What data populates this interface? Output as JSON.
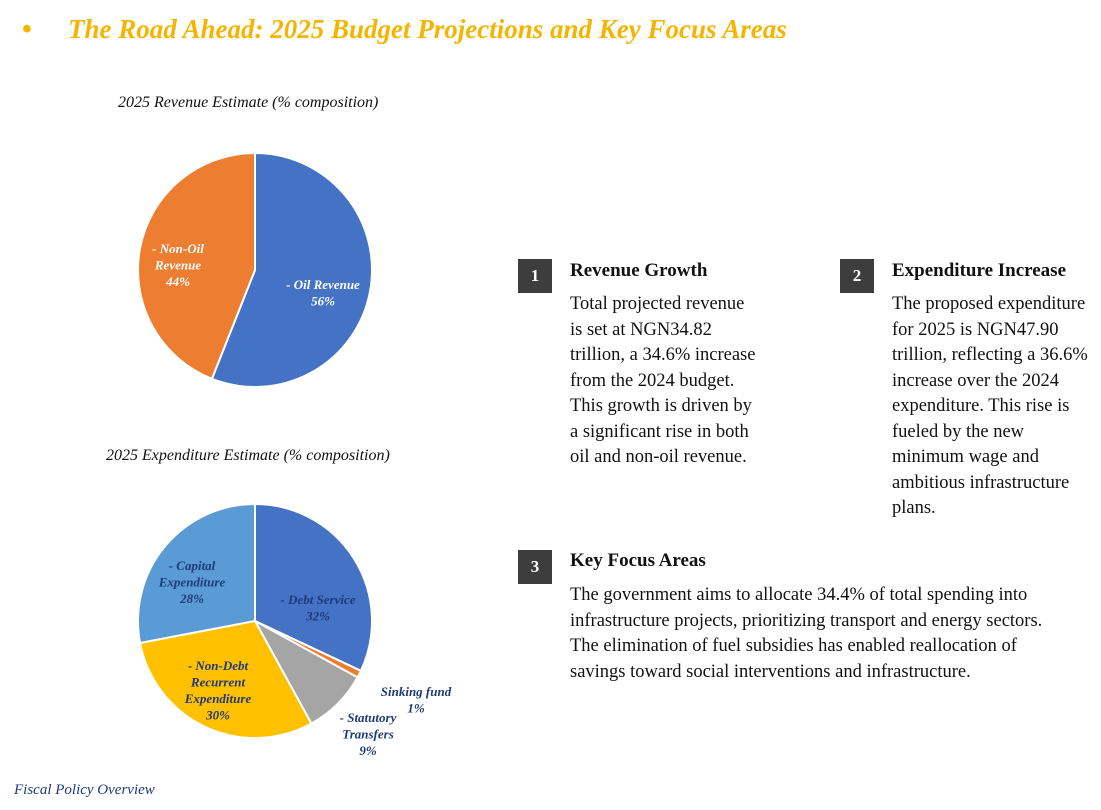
{
  "header": {
    "bullet": "•",
    "title": "The Road Ahead: 2025 Budget Projections and Key Focus Areas"
  },
  "colors": {
    "accent": "#F5B400",
    "oil": "#4472C4",
    "non_oil": "#ED7D31",
    "debt_service": "#4472C4",
    "sinking_fund": "#ED7D31",
    "statutory_transfers": "#A5A5A5",
    "non_debt_recurrent": "#FFC000",
    "capital_expenditure": "#5B9BD5",
    "label_dark": "#1F3A7A",
    "badge_bg": "#3D3D3D"
  },
  "chart_data": [
    {
      "type": "pie",
      "title": "2025 Revenue Estimate (% composition)",
      "slices": [
        {
          "name": "Oil Revenue",
          "value": 56,
          "label_lines": [
            "- Oil Revenue",
            "56%"
          ],
          "color": "#4472C4",
          "label_color": "#ffffff"
        },
        {
          "name": "Non-Oil Revenue",
          "value": 44,
          "label_lines": [
            "- Non-Oil",
            "Revenue",
            "44%"
          ],
          "color": "#ED7D31",
          "label_color": "#ffffff"
        }
      ]
    },
    {
      "type": "pie",
      "title": "2025 Expenditure Estimate (% composition)",
      "slices": [
        {
          "name": "Debt Service",
          "value": 32,
          "label_lines": [
            "- Debt Service",
            "32%"
          ],
          "color": "#4472C4",
          "label_color": "#1F3A7A"
        },
        {
          "name": "Sinking fund",
          "value": 1,
          "label_lines": [
            "Sinking fund",
            "1%"
          ],
          "color": "#ED7D31",
          "label_color": "#1F3A7A"
        },
        {
          "name": "Statutory Transfers",
          "value": 9,
          "label_lines": [
            "- Statutory",
            "Transfers",
            "9%"
          ],
          "color": "#A5A5A5",
          "label_color": "#1F3A7A"
        },
        {
          "name": "Non-Debt Recurrent Expenditure",
          "value": 30,
          "label_lines": [
            "- Non-Debt",
            "Recurrent",
            "Expenditure",
            "30%"
          ],
          "color": "#FFC000",
          "label_color": "#1F3A7A"
        },
        {
          "name": "Capital Expenditure",
          "value": 28,
          "label_lines": [
            "- Capital",
            "Expenditure",
            "28%"
          ],
          "color": "#5B9BD5",
          "label_color": "#1F3A7A"
        }
      ]
    }
  ],
  "cards": [
    {
      "number": "1",
      "title": "Revenue Growth",
      "lines": [
        "Total projected revenue",
        "is set at NGN34.82",
        "trillion, a 34.6% increase",
        "from the 2024 budget.",
        "This growth is driven by",
        "a significant rise in both",
        "oil and non-oil revenue."
      ]
    },
    {
      "number": "2",
      "title": "Expenditure Increase",
      "lines": [
        "The proposed expenditure",
        "for 2025 is NGN47.90",
        "trillion, reflecting a 36.6%",
        "increase over the 2024",
        "expenditure. This rise is",
        "fueled by the new",
        "minimum wage and",
        "ambitious infrastructure",
        "plans."
      ]
    },
    {
      "number": "3",
      "title": "Key Focus Areas",
      "lines": [
        "The government aims to allocate 34.4% of total spending into",
        "infrastructure projects, prioritizing transport and energy sectors.",
        "The elimination of fuel subsidies has enabled reallocation of",
        "savings toward social interventions and infrastructure."
      ]
    }
  ],
  "footer": {
    "text": "Fiscal Policy Overview"
  }
}
